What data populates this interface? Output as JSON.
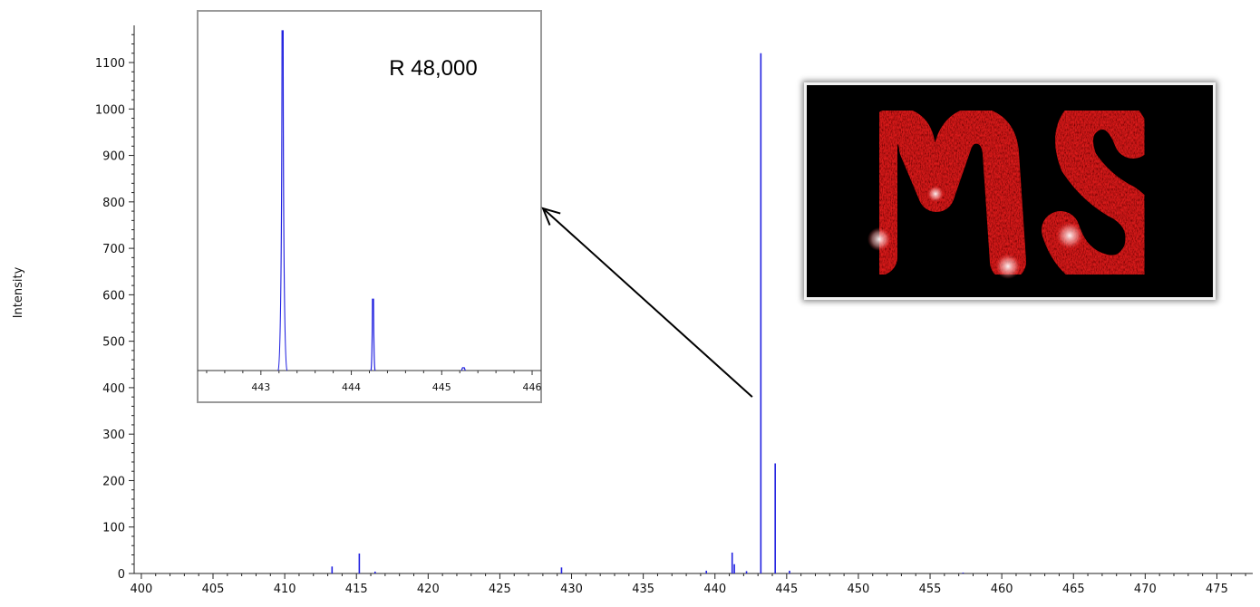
{
  "chart_data": [
    {
      "type": "line",
      "xlabel": "",
      "ylabel": "Intensity",
      "xlim": [
        399.5,
        477.5
      ],
      "ylim": [
        0,
        1180
      ],
      "x_ticks": [
        400,
        405,
        410,
        415,
        420,
        425,
        430,
        435,
        440,
        445,
        450,
        455,
        460,
        465,
        470,
        475
      ],
      "y_ticks": [
        0,
        100,
        200,
        300,
        400,
        500,
        600,
        700,
        800,
        900,
        1000,
        1100
      ],
      "series_color": "#2020e0",
      "peaks": [
        {
          "mz": 413.3,
          "intensity": 15
        },
        {
          "mz": 415.2,
          "intensity": 43
        },
        {
          "mz": 416.3,
          "intensity": 4
        },
        {
          "mz": 429.3,
          "intensity": 13
        },
        {
          "mz": 439.4,
          "intensity": 6
        },
        {
          "mz": 441.2,
          "intensity": 45
        },
        {
          "mz": 441.35,
          "intensity": 20
        },
        {
          "mz": 442.2,
          "intensity": 5
        },
        {
          "mz": 443.2,
          "intensity": 1120
        },
        {
          "mz": 444.2,
          "intensity": 237
        },
        {
          "mz": 445.2,
          "intensity": 6
        },
        {
          "mz": 457.3,
          "intensity": 2
        }
      ],
      "annotation_arrow": {
        "from_mz": 442.6,
        "from_intensity": 380
      }
    },
    {
      "type": "line",
      "title": "R 48,000",
      "xlim": [
        442.3,
        446.1
      ],
      "ylim": [
        0,
        1
      ],
      "x_ticks": [
        443,
        444,
        445,
        446
      ],
      "series_color": "#2020e0",
      "peaks": [
        {
          "mz": 443.24,
          "relative_intensity": 1.0
        },
        {
          "mz": 444.24,
          "relative_intensity": 0.21
        },
        {
          "mz": 445.24,
          "relative_intensity": 0.008
        }
      ]
    }
  ],
  "image": {
    "name": "ms-imaging-picture",
    "text": "MS",
    "color": "#e31717",
    "background": "#000000"
  }
}
